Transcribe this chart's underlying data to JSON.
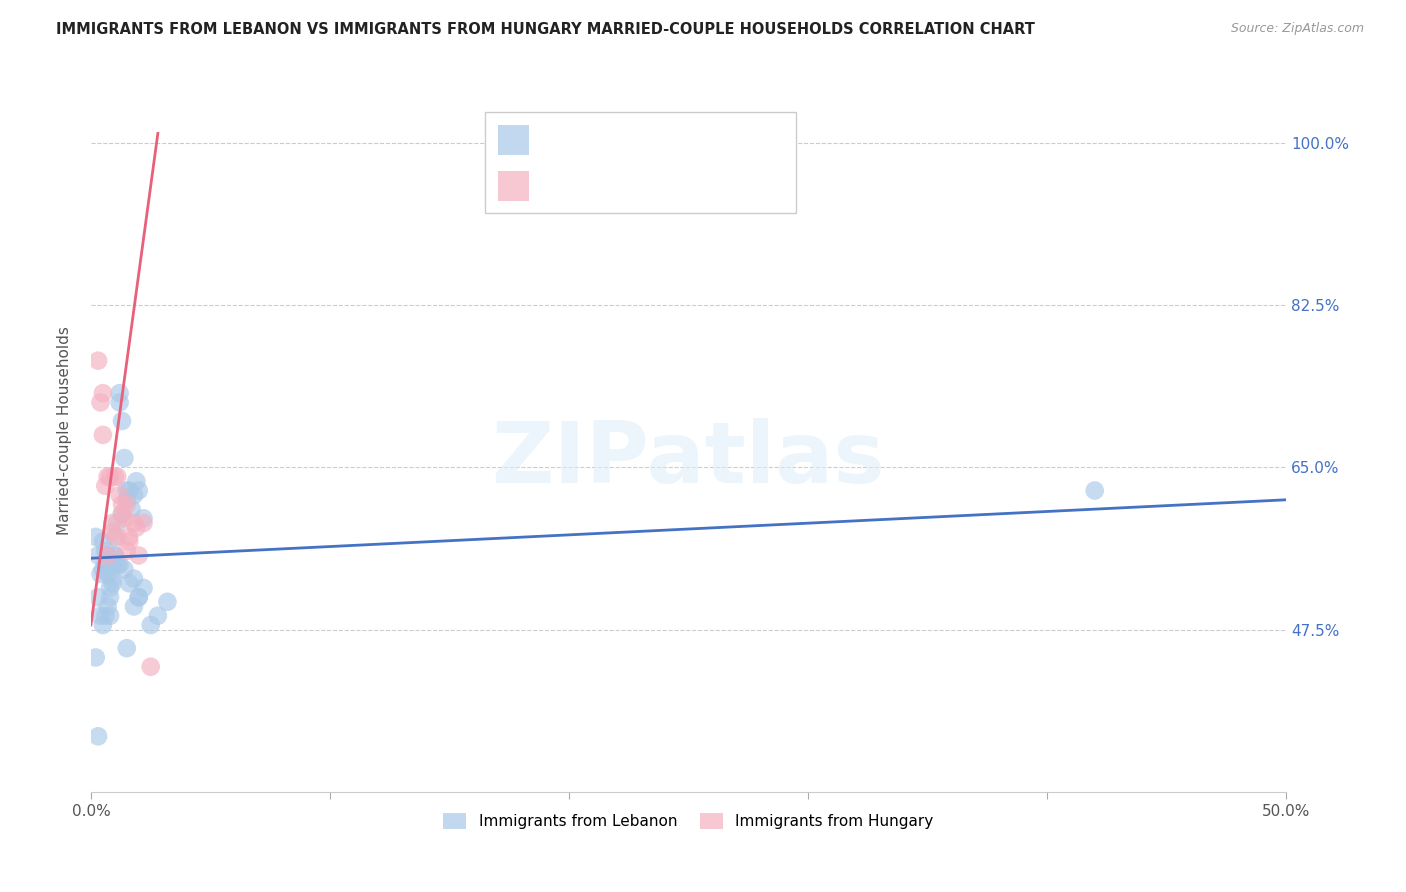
{
  "title": "IMMIGRANTS FROM LEBANON VS IMMIGRANTS FROM HUNGARY MARRIED-COUPLE HOUSEHOLDS CORRELATION CHART",
  "source": "Source: ZipAtlas.com",
  "ylabel": "Married-couple Households",
  "xlim": [
    0.0,
    0.5
  ],
  "ylim": [
    0.3,
    1.08
  ],
  "xticks": [
    0.0,
    0.1,
    0.2,
    0.3,
    0.4,
    0.5
  ],
  "xticklabels": [
    "0.0%",
    "",
    "",
    "",
    "",
    "50.0%"
  ],
  "yticks": [
    0.475,
    0.65,
    0.825,
    1.0
  ],
  "yticklabels": [
    "47.5%",
    "65.0%",
    "82.5%",
    "100.0%"
  ],
  "background_color": "#ffffff",
  "watermark": "ZIPatlas",
  "legend_label1": "Immigrants from Lebanon",
  "legend_label2": "Immigrants from Hungary",
  "blue_color": "#a8c8e8",
  "pink_color": "#f4b0c0",
  "line_blue": "#4472c4",
  "line_pink": "#e8607a",
  "blue_scatter_x": [
    0.002,
    0.003,
    0.004,
    0.005,
    0.005,
    0.006,
    0.006,
    0.007,
    0.007,
    0.008,
    0.008,
    0.009,
    0.009,
    0.01,
    0.01,
    0.011,
    0.011,
    0.012,
    0.012,
    0.013,
    0.013,
    0.014,
    0.015,
    0.015,
    0.016,
    0.017,
    0.018,
    0.019,
    0.02,
    0.022,
    0.003,
    0.004,
    0.005,
    0.006,
    0.007,
    0.008,
    0.009,
    0.01,
    0.012,
    0.014,
    0.016,
    0.018,
    0.02,
    0.022,
    0.025,
    0.028,
    0.032,
    0.015,
    0.018,
    0.02,
    0.42,
    0.002,
    0.003
  ],
  "blue_scatter_y": [
    0.575,
    0.555,
    0.535,
    0.57,
    0.54,
    0.545,
    0.56,
    0.535,
    0.555,
    0.52,
    0.51,
    0.545,
    0.525,
    0.575,
    0.555,
    0.59,
    0.545,
    0.72,
    0.73,
    0.7,
    0.6,
    0.66,
    0.615,
    0.625,
    0.625,
    0.605,
    0.62,
    0.635,
    0.625,
    0.595,
    0.51,
    0.49,
    0.48,
    0.49,
    0.5,
    0.49,
    0.53,
    0.555,
    0.545,
    0.54,
    0.525,
    0.5,
    0.51,
    0.52,
    0.48,
    0.49,
    0.505,
    0.455,
    0.53,
    0.51,
    0.625,
    0.445,
    0.36
  ],
  "pink_scatter_x": [
    0.003,
    0.004,
    0.005,
    0.006,
    0.007,
    0.008,
    0.009,
    0.01,
    0.011,
    0.012,
    0.013,
    0.014,
    0.015,
    0.016,
    0.018,
    0.019,
    0.02,
    0.022,
    0.005,
    0.007,
    0.009,
    0.011,
    0.013,
    0.015,
    0.016,
    0.025
  ],
  "pink_scatter_y": [
    0.765,
    0.72,
    0.685,
    0.63,
    0.555,
    0.64,
    0.59,
    0.64,
    0.575,
    0.62,
    0.61,
    0.595,
    0.61,
    0.575,
    0.59,
    0.585,
    0.555,
    0.59,
    0.73,
    0.64,
    0.58,
    0.64,
    0.6,
    0.56,
    0.57,
    0.435
  ],
  "blue_line_x": [
    0.0,
    0.5
  ],
  "blue_line_y": [
    0.552,
    0.615
  ],
  "pink_line_x": [
    0.0,
    0.028
  ],
  "pink_line_y": [
    0.48,
    1.01
  ]
}
